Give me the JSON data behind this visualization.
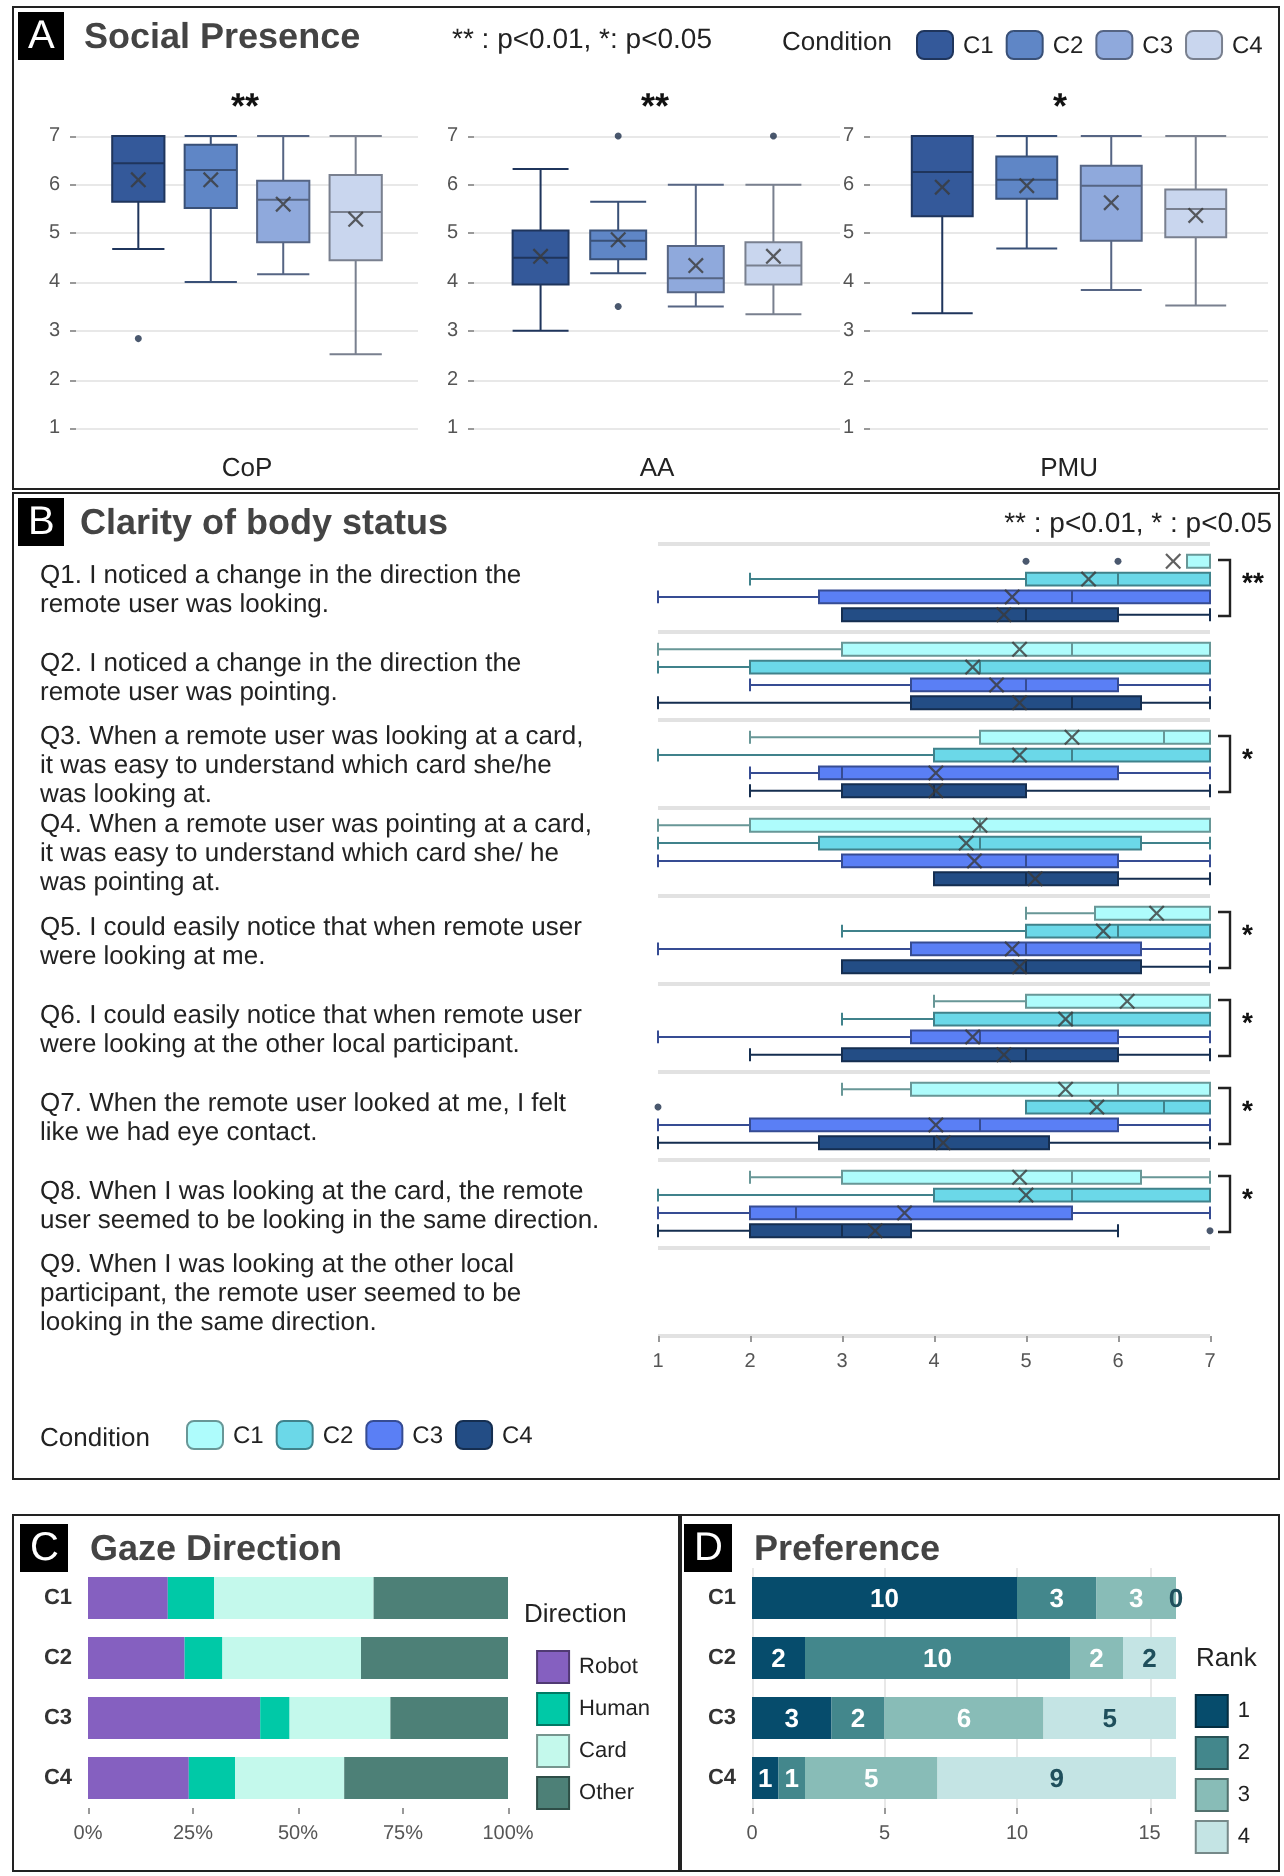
{
  "chart_data": [
    {
      "type": "box",
      "title": "Social Presence",
      "annotations": [
        "A",
        "** : p<0.01, *: p<0.05",
        "**"
      ],
      "xlabel": "CoP",
      "categories": [
        null
      ],
      "ylim": [
        1,
        7
      ],
      "yticks": [
        1,
        2,
        3,
        4,
        5,
        6,
        7
      ],
      "grid": "y",
      "legend": false,
      "series": [
        {
          "color": "#34599a",
          "boxes": [
            {
              "low": 4.68,
              "q1": 5.65,
              "median": 6.44,
              "q3": 7,
              "high": 7,
              "mean": 6.1,
              "outliers": [
                2.84
              ]
            }
          ]
        },
        {
          "color": "#5f86c6",
          "boxes": [
            {
              "low": 4.0,
              "q1": 5.52,
              "median": 6.3,
              "q3": 6.82,
              "high": 7,
              "mean": 6.1
            }
          ]
        },
        {
          "color": "#8fa9dc",
          "boxes": [
            {
              "low": 4.16,
              "q1": 4.82,
              "median": 5.69,
              "q3": 6.08,
              "high": 7,
              "mean": 5.6
            }
          ]
        },
        {
          "color": "#c9d6ee",
          "boxes": [
            {
              "low": 2.52,
              "q1": 4.45,
              "median": 5.44,
              "q3": 6.2,
              "high": 7,
              "mean": 5.29
            }
          ]
        }
      ]
    },
    {
      "type": "box",
      "annotations": [
        "**"
      ],
      "xlabel": "AA",
      "categories": [
        null
      ],
      "ylim": [
        1,
        7
      ],
      "yticks": [
        1,
        2,
        3,
        4,
        5,
        6,
        7
      ],
      "grid": "y",
      "legend": false,
      "series": [
        {
          "color": "#34599a",
          "boxes": [
            {
              "low": 3.0,
              "q1": 3.95,
              "median": 4.5,
              "q3": 5.06,
              "high": 6.32,
              "mean": 4.53
            }
          ]
        },
        {
          "color": "#5f86c6",
          "boxes": [
            {
              "low": 4.18,
              "q1": 4.47,
              "median": 4.85,
              "q3": 5.06,
              "high": 5.65,
              "mean": 4.87,
              "outliers": [
                7,
                3.5
              ]
            }
          ]
        },
        {
          "color": "#8fa9dc",
          "boxes": [
            {
              "low": 3.5,
              "q1": 3.79,
              "median": 4.08,
              "q3": 4.74,
              "high": 6.0,
              "mean": 4.34
            }
          ]
        },
        {
          "color": "#c9d6ee",
          "boxes": [
            {
              "low": 3.34,
              "q1": 3.95,
              "median": 4.34,
              "q3": 4.82,
              "high": 6.0,
              "mean": 4.53,
              "outliers": [
                7
              ]
            }
          ]
        }
      ]
    },
    {
      "type": "box",
      "annotations": [
        "*"
      ],
      "xlabel": "PMU",
      "categories": [
        null
      ],
      "ylim": [
        1,
        7
      ],
      "yticks": [
        1,
        2,
        3,
        4,
        5,
        6,
        7
      ],
      "grid": "y",
      "legend": "top right",
      "legend_title": "Condition",
      "series": [
        {
          "name": "C1",
          "color": "#34599a",
          "boxes": [
            {
              "low": 3.36,
              "q1": 5.35,
              "median": 6.26,
              "q3": 7,
              "high": 7,
              "mean": 5.95
            }
          ]
        },
        {
          "name": "C2",
          "color": "#5f86c6",
          "boxes": [
            {
              "low": 4.69,
              "q1": 5.71,
              "median": 6.1,
              "q3": 6.58,
              "high": 7,
              "mean": 5.98
            }
          ]
        },
        {
          "name": "C3",
          "color": "#8fa9dc",
          "boxes": [
            {
              "low": 3.84,
              "q1": 4.85,
              "median": 5.98,
              "q3": 6.39,
              "high": 7,
              "mean": 5.63
            }
          ]
        },
        {
          "name": "C4",
          "color": "#c9d6ee",
          "boxes": [
            {
              "low": 3.52,
              "q1": 4.92,
              "median": 5.5,
              "q3": 5.9,
              "high": 7,
              "mean": 5.37
            }
          ]
        }
      ]
    },
    {
      "type": "box",
      "orientation": "horizontal",
      "title": "Clarity of body status",
      "legend": "bottom",
      "legend_title": "Condition",
      "grid": "y",
      "xlim": [
        1,
        7
      ],
      "xticks": [
        1,
        2,
        3,
        4,
        5,
        6,
        7
      ],
      "categories": [
        "Q1. I noticed a change in the direction the remote user was looking.",
        "Q2. I noticed a change in the direction the remote user was pointing.",
        "Q3. When a remote user was looking at a card, it was easy to understand which card she/he was looking at.",
        "Q4. When a remote user was pointing at a card, it was easy to understand which card she/ he was pointing at.",
        "Q5. I could easily notice that when remote user were looking at me.",
        "Q6. I could easily notice that when remote user were looking at the other local participant.",
        "Q7. When the remote user looked at me, I felt like we had eye contact.",
        "Q8. When I was looking at the card, the remote user seemed to be looking in the same direction.",
        "Q9. When I was looking at the other local participant, the remote user seemed to be looking in the same direction."
      ],
      "annotations": [
        "B",
        "** : p<0.01, * : p<0.05",
        "**",
        "*",
        "*",
        "*",
        "*",
        "*"
      ],
      "series": [
        {
          "name": "C1",
          "color": "#aefcfc",
          "boxes": [
            {
              "low": 6.75,
              "q1": 6.75,
              "median": 7,
              "q3": 7,
              "high": 7,
              "mean": 6.6,
              "outliers": [
                5,
                6
              ]
            },
            {
              "low": 1,
              "q1": 3,
              "median": 5.5,
              "q3": 7,
              "high": 7,
              "mean": 4.93
            },
            {
              "low": 2,
              "q1": 4.5,
              "median": 6.5,
              "q3": 7,
              "high": 7,
              "mean": 5.5
            },
            {
              "low": 1,
              "q1": 2,
              "median": 4.5,
              "q3": 7,
              "high": 7,
              "mean": 4.5
            },
            {
              "low": 5,
              "q1": 5.75,
              "median": 7,
              "q3": 7,
              "high": 7,
              "mean": 6.42
            },
            {
              "low": 4,
              "q1": 5,
              "median": 7,
              "q3": 7,
              "high": 7,
              "mean": 6.1
            },
            {
              "low": 3,
              "q1": 3.75,
              "median": 6,
              "q3": 7,
              "high": 7,
              "mean": 5.43
            },
            {
              "low": 2,
              "q1": 3,
              "median": 5.5,
              "q3": 6.25,
              "high": 7,
              "mean": 4.93
            },
            null
          ]
        },
        {
          "name": "C2",
          "color": "#6bd8e8",
          "boxes": [
            {
              "low": 2,
              "q1": 5,
              "median": 6,
              "q3": 7,
              "high": 7,
              "mean": 5.68
            },
            {
              "low": 1,
              "q1": 2,
              "median": 4.5,
              "q3": 7,
              "high": 7,
              "mean": 4.42
            },
            {
              "low": 1,
              "q1": 4,
              "median": 5.5,
              "q3": 7,
              "high": 7,
              "mean": 4.93
            },
            {
              "low": 1,
              "q1": 2.75,
              "median": 4.5,
              "q3": 6.25,
              "high": 7,
              "mean": 4.35
            },
            {
              "low": 3,
              "q1": 5,
              "median": 6,
              "q3": 7,
              "high": 7,
              "mean": 5.84
            },
            {
              "low": 3,
              "q1": 4,
              "median": 5.5,
              "q3": 7,
              "high": 7,
              "mean": 5.43
            },
            {
              "low": 5,
              "q1": 5,
              "median": 6.5,
              "q3": 7,
              "high": 7,
              "mean": 5.77,
              "outliers": [
                1
              ]
            },
            {
              "low": 1,
              "q1": 4,
              "median": 5.5,
              "q3": 7,
              "high": 7,
              "mean": 5.0
            },
            null
          ]
        },
        {
          "name": "C3",
          "color": "#5a7ff5",
          "boxes": [
            {
              "low": 1,
              "q1": 2.75,
              "median": 5.5,
              "q3": 7,
              "high": 7,
              "mean": 4.85
            },
            {
              "low": 2,
              "q1": 3.75,
              "median": 5,
              "q3": 6,
              "high": 7,
              "mean": 4.68
            },
            {
              "low": 2,
              "q1": 2.75,
              "median": 3,
              "q3": 6,
              "high": 7,
              "mean": 4.02
            },
            {
              "low": 1,
              "q1": 3,
              "median": 5,
              "q3": 6,
              "high": 7,
              "mean": 4.44
            },
            {
              "low": 1,
              "q1": 3.75,
              "median": 5,
              "q3": 6.25,
              "high": 7,
              "mean": 4.85
            },
            {
              "low": 1,
              "q1": 3.75,
              "median": 4.5,
              "q3": 6,
              "high": 7,
              "mean": 4.42
            },
            {
              "low": 1,
              "q1": 2,
              "median": 4.5,
              "q3": 6,
              "high": 7,
              "mean": 4.02
            },
            {
              "low": 1,
              "q1": 2,
              "median": 2.5,
              "q3": 5.5,
              "high": 7,
              "mean": 3.68
            },
            null
          ]
        },
        {
          "name": "C4",
          "color": "#234d85",
          "boxes": [
            {
              "low": 3,
              "q1": 3,
              "median": 5,
              "q3": 6,
              "high": 7,
              "mean": 4.76
            },
            {
              "low": 1,
              "q1": 3.75,
              "median": 5.5,
              "q3": 6.25,
              "high": 7,
              "mean": 4.93
            },
            {
              "low": 2,
              "q1": 3,
              "median": 4,
              "q3": 5,
              "high": 7,
              "mean": 4.02
            },
            {
              "low": 4,
              "q1": 4,
              "median": 5,
              "q3": 6,
              "high": 7,
              "mean": 5.1
            },
            {
              "low": 3,
              "q1": 3,
              "median": 5,
              "q3": 6.25,
              "high": 7,
              "mean": 4.93
            },
            {
              "low": 2,
              "q1": 3,
              "median": 5,
              "q3": 6,
              "high": 7,
              "mean": 4.76
            },
            {
              "low": 1,
              "q1": 2.75,
              "median": 4,
              "q3": 5.25,
              "high": 7,
              "mean": 4.1
            },
            {
              "low": 1,
              "q1": 2,
              "median": 3,
              "q3": 3.75,
              "high": 6,
              "mean": 3.36,
              "outliers": [
                7
              ]
            },
            null
          ]
        }
      ]
    },
    {
      "type": "bar",
      "orientation": "horizontal",
      "stacked": true,
      "title": "Gaze Direction",
      "annotations": [
        "C"
      ],
      "categories": [
        "C1",
        "C2",
        "C3",
        "C4"
      ],
      "xlim": [
        0,
        100
      ],
      "xticks": [
        {
          "value": 0,
          "label": "0%"
        },
        {
          "value": 25,
          "label": "25%"
        },
        {
          "value": 50,
          "label": "50%"
        },
        {
          "value": 75,
          "label": "75%"
        },
        {
          "value": 100,
          "label": "100%"
        }
      ],
      "legend": "right",
      "legend_title": "Direction",
      "series": [
        {
          "name": "Robot",
          "color": "#8560c0",
          "values": [
            19,
            23,
            41,
            24
          ]
        },
        {
          "name": "Human",
          "color": "#00c9a7",
          "values": [
            11,
            9,
            7,
            11
          ]
        },
        {
          "name": "Card",
          "color": "#c4f9ec",
          "values": [
            38,
            33,
            24,
            26
          ]
        },
        {
          "name": "Other",
          "color": "#4d8077",
          "values": [
            32,
            35,
            28,
            39
          ]
        }
      ]
    },
    {
      "type": "bar",
      "orientation": "horizontal",
      "stacked": true,
      "data_labels": true,
      "title": "Preference",
      "annotations": [
        "D"
      ],
      "categories": [
        "C1",
        "C2",
        "C3",
        "C4"
      ],
      "xlim": [
        0,
        16
      ],
      "xticks": [
        0,
        5,
        10,
        15
      ],
      "grid": "x",
      "legend": "right",
      "legend_title": "Rank",
      "series": [
        {
          "name": "1",
          "color": "#064c6c",
          "values": [
            10,
            2,
            3,
            1
          ]
        },
        {
          "name": "2",
          "color": "#43878c",
          "values": [
            3,
            10,
            2,
            1
          ]
        },
        {
          "name": "3",
          "color": "#88bcb7",
          "values": [
            3,
            2,
            6,
            5
          ]
        },
        {
          "name": "4",
          "color": "#c4e4e4",
          "values": [
            0,
            2,
            5,
            9
          ]
        }
      ]
    }
  ]
}
